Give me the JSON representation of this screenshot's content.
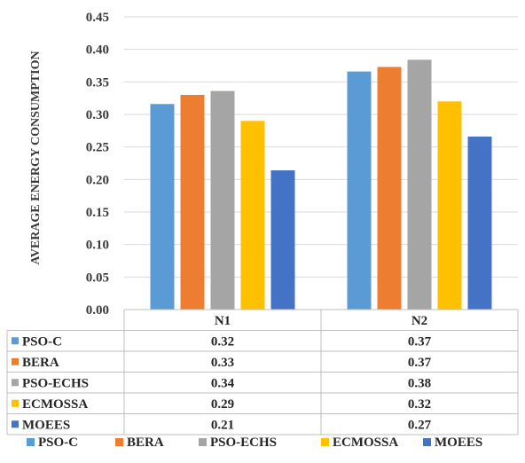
{
  "chart_data": {
    "type": "bar",
    "ylabel": "AVERAGE ENERGY CONSUMPTION",
    "ylim": [
      0,
      0.45
    ],
    "yticks": [
      "0.00",
      "0.05",
      "0.10",
      "0.15",
      "0.20",
      "0.25",
      "0.30",
      "0.35",
      "0.40",
      "0.45"
    ],
    "grid": true,
    "legend": "bottom",
    "categories": [
      "N1",
      "N2"
    ],
    "series": [
      {
        "name": "PSO-C",
        "color": "#5b9bd5",
        "values": [
          0.316,
          0.366
        ],
        "labels": [
          "0.32",
          "0.37"
        ]
      },
      {
        "name": "BERA",
        "color": "#ed7d31",
        "values": [
          0.33,
          0.373
        ],
        "labels": [
          "0.33",
          "0.37"
        ]
      },
      {
        "name": "PSO-ECHS",
        "color": "#a5a5a5",
        "values": [
          0.336,
          0.384
        ],
        "labels": [
          "0.34",
          "0.38"
        ]
      },
      {
        "name": "ECMOSSA",
        "color": "#ffc000",
        "values": [
          0.29,
          0.32
        ],
        "labels": [
          "0.29",
          "0.32"
        ]
      },
      {
        "name": "MOEES",
        "color": "#4472c4",
        "values": [
          0.214,
          0.266
        ],
        "labels": [
          "0.21",
          "0.27"
        ]
      }
    ]
  }
}
